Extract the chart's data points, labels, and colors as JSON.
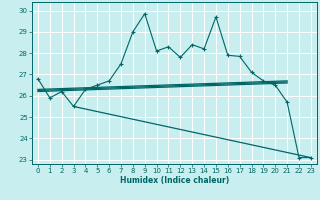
{
  "xlabel": "Humidex (Indice chaleur)",
  "bg_color": "#c8eef0",
  "grid_color": "#ffffff",
  "line_color": "#006666",
  "xlim": [
    -0.5,
    23.5
  ],
  "ylim": [
    22.8,
    30.4
  ],
  "yticks": [
    23,
    24,
    25,
    26,
    27,
    28,
    29,
    30
  ],
  "xticks": [
    0,
    1,
    2,
    3,
    4,
    5,
    6,
    7,
    8,
    9,
    10,
    11,
    12,
    13,
    14,
    15,
    16,
    17,
    18,
    19,
    20,
    21,
    22,
    23
  ],
  "line1_x": [
    0,
    1,
    2,
    3,
    4,
    5,
    6,
    7,
    8,
    9,
    10,
    11,
    12,
    13,
    14,
    15,
    16,
    17,
    18,
    19,
    20,
    21,
    22,
    23
  ],
  "line1_y": [
    26.8,
    25.9,
    26.2,
    25.5,
    26.3,
    26.5,
    26.7,
    27.5,
    29.0,
    29.85,
    28.1,
    28.3,
    27.8,
    28.4,
    28.2,
    29.7,
    27.9,
    27.85,
    27.1,
    26.7,
    26.5,
    25.7,
    23.1,
    23.1
  ],
  "line2_x": [
    0,
    21
  ],
  "line2_y": [
    26.2,
    26.6
  ],
  "line3_x": [
    0,
    21
  ],
  "line3_y": [
    26.25,
    26.65
  ],
  "line4_x": [
    0,
    21
  ],
  "line4_y": [
    26.3,
    26.7
  ],
  "line5_x": [
    3,
    23
  ],
  "line5_y": [
    25.5,
    23.1
  ]
}
